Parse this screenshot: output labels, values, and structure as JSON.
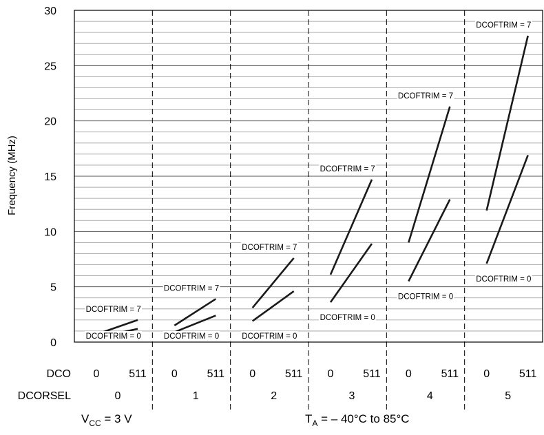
{
  "chart_data": {
    "type": "line",
    "title": "",
    "xlabel": "",
    "ylabel": "Frequency (MHz)",
    "ylim": [
      0,
      30
    ],
    "y_major_ticks": [
      0,
      5,
      10,
      15,
      20,
      25,
      30
    ],
    "y_minor_step": 1,
    "grid": true,
    "x_row_label": "DCO",
    "group_row_label": "DCORSEL",
    "x_tick_labels": [
      "0",
      "511"
    ],
    "groups": [
      {
        "dcorsel": "0",
        "series": [
          {
            "name": "DCOFTRIM = 7",
            "dco": [
              0,
              511
            ],
            "values": [
              0.7,
              2.0
            ]
          },
          {
            "name": "DCOFTRIM = 0",
            "dco": [
              0,
              511
            ],
            "values": [
              0.4,
              1.2
            ]
          }
        ]
      },
      {
        "dcorsel": "1",
        "series": [
          {
            "name": "DCOFTRIM = 7",
            "dco": [
              0,
              511
            ],
            "values": [
              1.5,
              3.9
            ]
          },
          {
            "name": "DCOFTRIM = 0",
            "dco": [
              0,
              511
            ],
            "values": [
              0.9,
              2.4
            ]
          }
        ]
      },
      {
        "dcorsel": "2",
        "series": [
          {
            "name": "DCOFTRIM = 7",
            "dco": [
              0,
              511
            ],
            "values": [
              3.1,
              7.6
            ]
          },
          {
            "name": "DCOFTRIM = 0",
            "dco": [
              0,
              511
            ],
            "values": [
              1.9,
              4.6
            ]
          }
        ]
      },
      {
        "dcorsel": "3",
        "series": [
          {
            "name": "DCOFTRIM = 7",
            "dco": [
              0,
              511
            ],
            "values": [
              6.1,
              14.7
            ]
          },
          {
            "name": "DCOFTRIM = 0",
            "dco": [
              0,
              511
            ],
            "values": [
              3.6,
              8.9
            ]
          }
        ]
      },
      {
        "dcorsel": "4",
        "series": [
          {
            "name": "DCOFTRIM = 7",
            "dco": [
              0,
              511
            ],
            "values": [
              9.0,
              21.3
            ]
          },
          {
            "name": "DCOFTRIM = 0",
            "dco": [
              0,
              511
            ],
            "values": [
              5.5,
              12.9
            ]
          }
        ]
      },
      {
        "dcorsel": "5",
        "series": [
          {
            "name": "DCOFTRIM = 7",
            "dco": [
              0,
              511
            ],
            "values": [
              11.9,
              27.7
            ]
          },
          {
            "name": "DCOFTRIM = 0",
            "dco": [
              0,
              511
            ],
            "values": [
              7.1,
              16.9
            ]
          }
        ]
      }
    ],
    "conditions": {
      "vcc_main": "V",
      "vcc_sub": "CC",
      "vcc_rest": " = 3 V",
      "ta_main": "T",
      "ta_sub": "A",
      "ta_rest": " =  – 40°C to 85°C"
    }
  }
}
